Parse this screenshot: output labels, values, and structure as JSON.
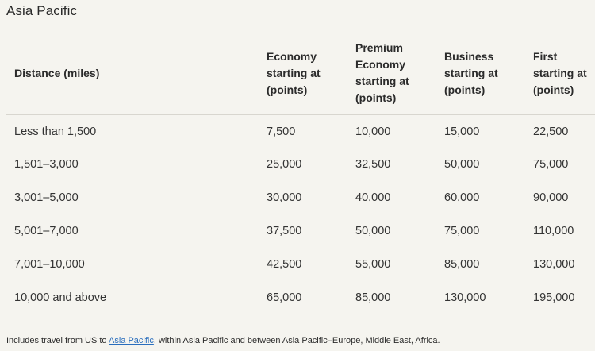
{
  "section": {
    "title": "Asia Pacific"
  },
  "table": {
    "headers": [
      "Distance (miles)",
      "Economy starting at (points)",
      "Premium Economy starting at (points)",
      "Business starting at (points)",
      "First starting at (points)"
    ],
    "rows": [
      [
        "Less than 1,500",
        "7,500",
        "10,000",
        "15,000",
        "22,500"
      ],
      [
        "1,501–3,000",
        "25,000",
        "32,500",
        "50,000",
        "75,000"
      ],
      [
        "3,001–5,000",
        "30,000",
        "40,000",
        "60,000",
        "90,000"
      ],
      [
        "5,001–7,000",
        "37,500",
        "50,000",
        "75,000",
        "110,000"
      ],
      [
        "7,001–10,000",
        "42,500",
        "55,000",
        "85,000",
        "130,000"
      ],
      [
        "10,000 and above",
        "65,000",
        "85,000",
        "130,000",
        "195,000"
      ]
    ]
  },
  "footnote": {
    "before": "Includes travel from US to ",
    "link_text": "Asia Pacific",
    "after": ", within Asia Pacific and between Asia Pacific–Europe, Middle East, Africa."
  },
  "colors": {
    "background": "#f5f4ef",
    "link": "#2a6ebd",
    "divider": "#d8d6cf"
  }
}
